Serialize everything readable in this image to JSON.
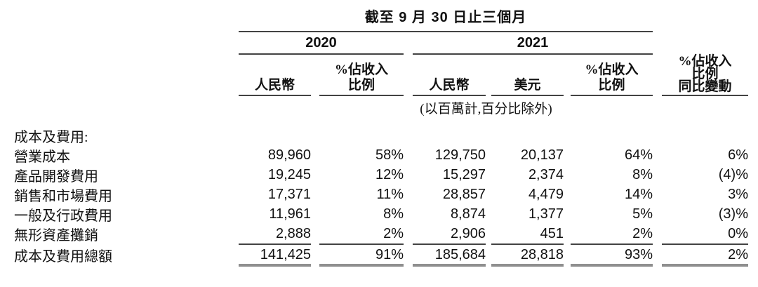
{
  "table": {
    "period_title": "截至 9 月 30 日止三個月",
    "groups": {
      "y2020": "2020",
      "y2021": "2021"
    },
    "columns": {
      "rmb_2020": "人民幣",
      "pct_2020": [
        "%佔收入",
        "比例"
      ],
      "rmb_2021": "人民幣",
      "usd_2021": "美元",
      "pct_2021": [
        "%佔收入",
        "比例"
      ],
      "yoy": [
        "%佔收入",
        "比例",
        "同比變動"
      ]
    },
    "unit_note": "(以百萬計,百分比除外)",
    "section_label": "成本及費用:",
    "rows": [
      {
        "label": "營業成本",
        "rmb2020": "89,960",
        "pct2020": "58%",
        "rmb2021": "129,750",
        "usd2021": "20,137",
        "pct2021": "64%",
        "yoy": "6%"
      },
      {
        "label": "產品開發費用",
        "rmb2020": "19,245",
        "pct2020": "12%",
        "rmb2021": "15,297",
        "usd2021": "2,374",
        "pct2021": "8%",
        "yoy": "(4)%"
      },
      {
        "label": "銷售和市場費用",
        "rmb2020": "17,371",
        "pct2020": "11%",
        "rmb2021": "28,857",
        "usd2021": "4,479",
        "pct2021": "14%",
        "yoy": "3%"
      },
      {
        "label": "一般及行政費用",
        "rmb2020": "11,961",
        "pct2020": "8%",
        "rmb2021": "8,874",
        "usd2021": "1,377",
        "pct2021": "5%",
        "yoy": "(3)%"
      },
      {
        "label": "無形資產攤銷",
        "rmb2020": "2,888",
        "pct2020": "2%",
        "rmb2021": "2,906",
        "usd2021": "451",
        "pct2021": "2%",
        "yoy": "0%"
      }
    ],
    "total": {
      "label": "成本及費用總額",
      "rmb2020": "141,425",
      "pct2020": "91%",
      "rmb2021": "185,684",
      "usd2021": "28,818",
      "pct2021": "93%",
      "yoy": "2%"
    }
  },
  "colors": {
    "rule": "#434343",
    "total_rule": "#8f8f8f",
    "text": "#111111"
  }
}
